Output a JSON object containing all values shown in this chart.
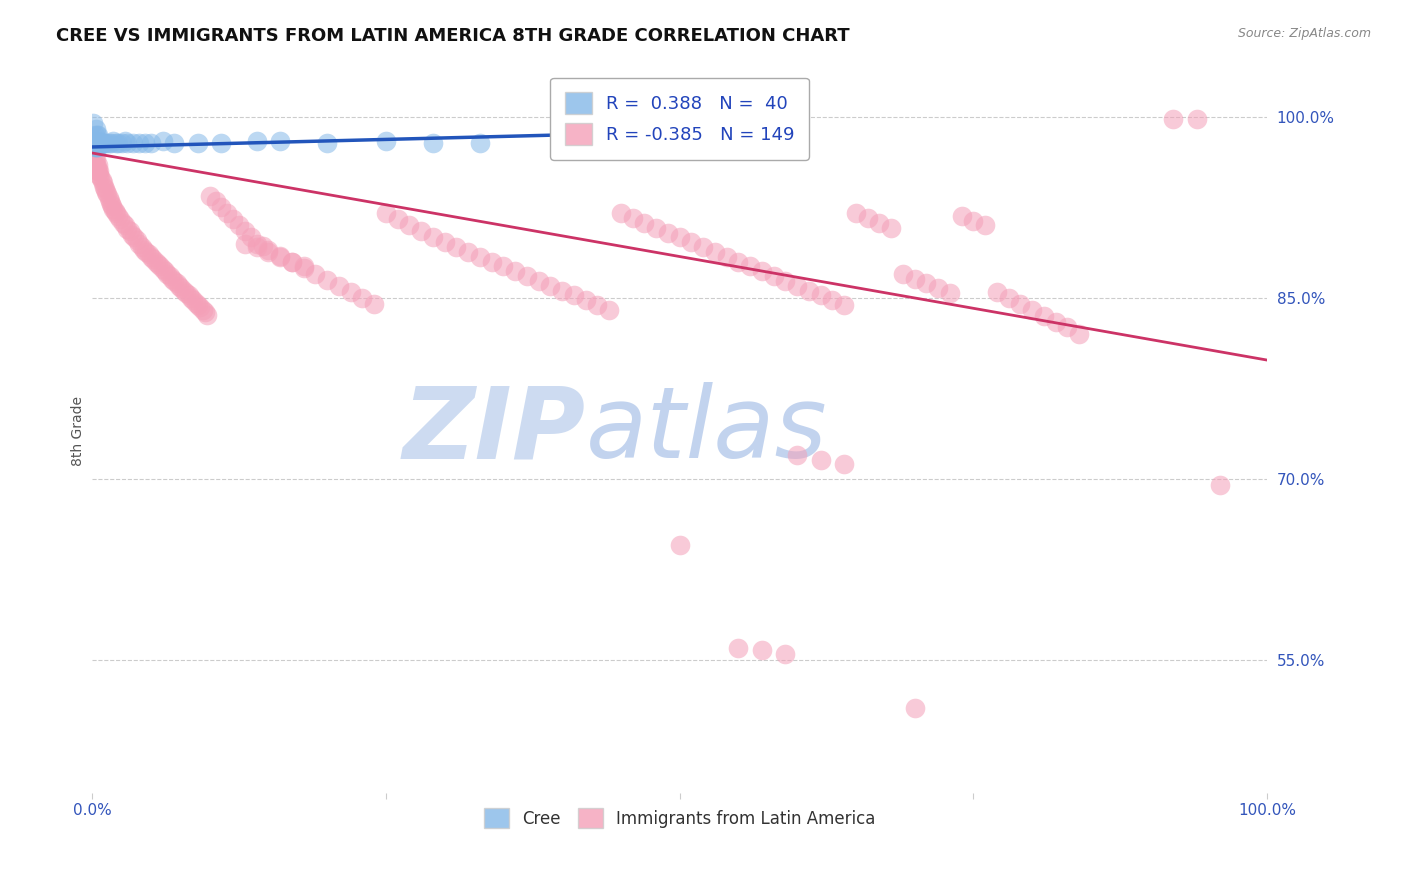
{
  "title": "CREE VS IMMIGRANTS FROM LATIN AMERICA 8TH GRADE CORRELATION CHART",
  "source": "Source: ZipAtlas.com",
  "ylabel": "8th Grade",
  "y_tick_labels": [
    "55.0%",
    "70.0%",
    "85.0%",
    "100.0%"
  ],
  "y_tick_values": [
    0.55,
    0.7,
    0.85,
    1.0
  ],
  "cree_color": "#85b8e8",
  "pink_color": "#f4a0b8",
  "blue_line_color": "#2255bb",
  "pink_line_color": "#cc3366",
  "watermark_zip": "ZIP",
  "watermark_atlas": "atlas",
  "watermark_color_zip": "#c5d8f0",
  "watermark_color_atlas": "#b0cce8",
  "background_color": "#ffffff",
  "grid_color": "#cccccc",
  "xlim": [
    0.0,
    1.0
  ],
  "ylim": [
    0.44,
    1.04
  ],
  "cree_points": [
    [
      0.001,
      0.995
    ],
    [
      0.002,
      0.985
    ],
    [
      0.002,
      0.98
    ],
    [
      0.002,
      0.975
    ],
    [
      0.003,
      0.99
    ],
    [
      0.003,
      0.98
    ],
    [
      0.003,
      0.975
    ],
    [
      0.004,
      0.985
    ],
    [
      0.004,
      0.975
    ],
    [
      0.005,
      0.985
    ],
    [
      0.005,
      0.975
    ],
    [
      0.006,
      0.98
    ],
    [
      0.007,
      0.978
    ],
    [
      0.008,
      0.978
    ],
    [
      0.009,
      0.978
    ],
    [
      0.01,
      0.978
    ],
    [
      0.012,
      0.978
    ],
    [
      0.014,
      0.978
    ],
    [
      0.016,
      0.978
    ],
    [
      0.018,
      0.98
    ],
    [
      0.02,
      0.978
    ],
    [
      0.022,
      0.978
    ],
    [
      0.025,
      0.978
    ],
    [
      0.028,
      0.98
    ],
    [
      0.03,
      0.978
    ],
    [
      0.035,
      0.978
    ],
    [
      0.04,
      0.978
    ],
    [
      0.045,
      0.978
    ],
    [
      0.05,
      0.978
    ],
    [
      0.06,
      0.98
    ],
    [
      0.07,
      0.978
    ],
    [
      0.09,
      0.978
    ],
    [
      0.11,
      0.978
    ],
    [
      0.14,
      0.98
    ],
    [
      0.16,
      0.98
    ],
    [
      0.2,
      0.978
    ],
    [
      0.25,
      0.98
    ],
    [
      0.29,
      0.978
    ],
    [
      0.33,
      0.978
    ],
    [
      0.57,
      0.978
    ]
  ],
  "pink_points": [
    [
      0.001,
      0.97
    ],
    [
      0.002,
      0.965
    ],
    [
      0.002,
      0.96
    ],
    [
      0.003,
      0.965
    ],
    [
      0.003,
      0.96
    ],
    [
      0.004,
      0.958
    ],
    [
      0.004,
      0.955
    ],
    [
      0.005,
      0.96
    ],
    [
      0.005,
      0.955
    ],
    [
      0.006,
      0.955
    ],
    [
      0.006,
      0.952
    ],
    [
      0.007,
      0.95
    ],
    [
      0.008,
      0.948
    ],
    [
      0.009,
      0.945
    ],
    [
      0.01,
      0.942
    ],
    [
      0.011,
      0.94
    ],
    [
      0.012,
      0.938
    ],
    [
      0.013,
      0.936
    ],
    [
      0.014,
      0.933
    ],
    [
      0.015,
      0.93
    ],
    [
      0.016,
      0.928
    ],
    [
      0.017,
      0.926
    ],
    [
      0.018,
      0.924
    ],
    [
      0.019,
      0.922
    ],
    [
      0.02,
      0.92
    ],
    [
      0.022,
      0.918
    ],
    [
      0.024,
      0.915
    ],
    [
      0.026,
      0.912
    ],
    [
      0.028,
      0.91
    ],
    [
      0.03,
      0.907
    ],
    [
      0.032,
      0.905
    ],
    [
      0.034,
      0.902
    ],
    [
      0.036,
      0.9
    ],
    [
      0.038,
      0.898
    ],
    [
      0.04,
      0.895
    ],
    [
      0.042,
      0.892
    ],
    [
      0.044,
      0.89
    ],
    [
      0.046,
      0.888
    ],
    [
      0.048,
      0.886
    ],
    [
      0.05,
      0.884
    ],
    [
      0.052,
      0.882
    ],
    [
      0.054,
      0.88
    ],
    [
      0.056,
      0.878
    ],
    [
      0.058,
      0.876
    ],
    [
      0.06,
      0.874
    ],
    [
      0.062,
      0.872
    ],
    [
      0.064,
      0.87
    ],
    [
      0.066,
      0.868
    ],
    [
      0.068,
      0.866
    ],
    [
      0.07,
      0.864
    ],
    [
      0.072,
      0.862
    ],
    [
      0.074,
      0.86
    ],
    [
      0.076,
      0.858
    ],
    [
      0.078,
      0.856
    ],
    [
      0.08,
      0.854
    ],
    [
      0.082,
      0.852
    ],
    [
      0.084,
      0.85
    ],
    [
      0.086,
      0.848
    ],
    [
      0.088,
      0.846
    ],
    [
      0.09,
      0.844
    ],
    [
      0.092,
      0.842
    ],
    [
      0.094,
      0.84
    ],
    [
      0.096,
      0.838
    ],
    [
      0.098,
      0.836
    ],
    [
      0.1,
      0.934
    ],
    [
      0.105,
      0.93
    ],
    [
      0.11,
      0.925
    ],
    [
      0.115,
      0.92
    ],
    [
      0.12,
      0.915
    ],
    [
      0.125,
      0.91
    ],
    [
      0.13,
      0.905
    ],
    [
      0.135,
      0.9
    ],
    [
      0.14,
      0.895
    ],
    [
      0.145,
      0.893
    ],
    [
      0.15,
      0.89
    ],
    [
      0.16,
      0.885
    ],
    [
      0.17,
      0.88
    ],
    [
      0.18,
      0.875
    ],
    [
      0.19,
      0.87
    ],
    [
      0.2,
      0.865
    ],
    [
      0.21,
      0.86
    ],
    [
      0.22,
      0.855
    ],
    [
      0.23,
      0.85
    ],
    [
      0.24,
      0.845
    ],
    [
      0.13,
      0.895
    ],
    [
      0.14,
      0.892
    ],
    [
      0.15,
      0.888
    ],
    [
      0.16,
      0.884
    ],
    [
      0.17,
      0.88
    ],
    [
      0.18,
      0.876
    ],
    [
      0.25,
      0.92
    ],
    [
      0.26,
      0.915
    ],
    [
      0.27,
      0.91
    ],
    [
      0.28,
      0.905
    ],
    [
      0.29,
      0.9
    ],
    [
      0.3,
      0.896
    ],
    [
      0.31,
      0.892
    ],
    [
      0.32,
      0.888
    ],
    [
      0.33,
      0.884
    ],
    [
      0.34,
      0.88
    ],
    [
      0.35,
      0.876
    ],
    [
      0.36,
      0.872
    ],
    [
      0.37,
      0.868
    ],
    [
      0.38,
      0.864
    ],
    [
      0.39,
      0.86
    ],
    [
      0.4,
      0.856
    ],
    [
      0.41,
      0.852
    ],
    [
      0.42,
      0.848
    ],
    [
      0.43,
      0.844
    ],
    [
      0.44,
      0.84
    ],
    [
      0.45,
      0.92
    ],
    [
      0.46,
      0.916
    ],
    [
      0.47,
      0.912
    ],
    [
      0.48,
      0.908
    ],
    [
      0.49,
      0.904
    ],
    [
      0.5,
      0.9
    ],
    [
      0.51,
      0.896
    ],
    [
      0.52,
      0.892
    ],
    [
      0.53,
      0.888
    ],
    [
      0.54,
      0.884
    ],
    [
      0.55,
      0.88
    ],
    [
      0.56,
      0.876
    ],
    [
      0.57,
      0.872
    ],
    [
      0.58,
      0.868
    ],
    [
      0.59,
      0.864
    ],
    [
      0.6,
      0.86
    ],
    [
      0.61,
      0.856
    ],
    [
      0.62,
      0.852
    ],
    [
      0.63,
      0.848
    ],
    [
      0.64,
      0.844
    ],
    [
      0.65,
      0.92
    ],
    [
      0.66,
      0.916
    ],
    [
      0.67,
      0.912
    ],
    [
      0.68,
      0.908
    ],
    [
      0.69,
      0.87
    ],
    [
      0.7,
      0.866
    ],
    [
      0.71,
      0.862
    ],
    [
      0.72,
      0.858
    ],
    [
      0.73,
      0.854
    ],
    [
      0.74,
      0.918
    ],
    [
      0.75,
      0.914
    ],
    [
      0.76,
      0.91
    ],
    [
      0.6,
      0.72
    ],
    [
      0.62,
      0.716
    ],
    [
      0.64,
      0.712
    ],
    [
      0.5,
      0.645
    ],
    [
      0.55,
      0.56
    ],
    [
      0.57,
      0.558
    ],
    [
      0.59,
      0.555
    ],
    [
      0.7,
      0.51
    ],
    [
      0.96,
      0.695
    ],
    [
      0.92,
      0.998
    ],
    [
      0.94,
      0.998
    ],
    [
      0.77,
      0.855
    ],
    [
      0.78,
      0.85
    ],
    [
      0.79,
      0.845
    ],
    [
      0.8,
      0.84
    ],
    [
      0.81,
      0.835
    ],
    [
      0.82,
      0.83
    ],
    [
      0.83,
      0.826
    ],
    [
      0.84,
      0.82
    ]
  ],
  "cree_line": {
    "x0": 0.0,
    "y0": 0.975,
    "x1": 0.6,
    "y1": 0.99
  },
  "pink_line": {
    "x0": 0.0,
    "y0": 0.97,
    "x1": 1.02,
    "y1": 0.795
  }
}
